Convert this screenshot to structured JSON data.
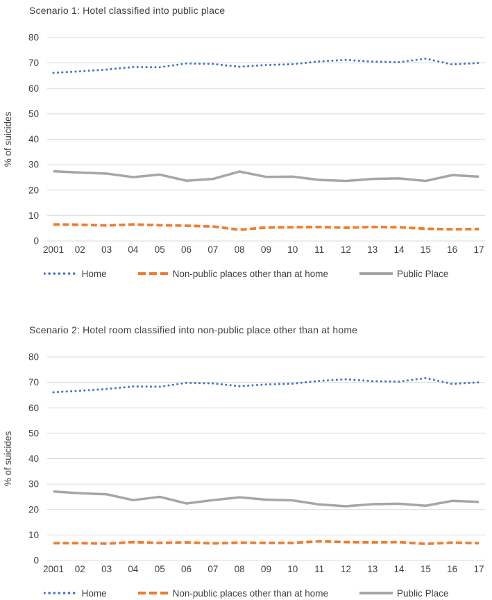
{
  "colors": {
    "home_series": "#4472C4",
    "non_public_series": "#ED7D31",
    "public_place_series": "#A6A6A6",
    "gridline": "#D9D9D9",
    "axis_text": "#3F3F3F",
    "background": "#FFFFFF"
  },
  "chart_data": [
    {
      "type": "line",
      "title": "Scenario 1: Hotel classified into public place",
      "xlabel": "",
      "ylabel": "% of suicides",
      "ylim": [
        0,
        80
      ],
      "yticks": [
        0,
        10,
        20,
        30,
        40,
        50,
        60,
        70,
        80
      ],
      "grid": true,
      "legend_position": "bottom",
      "categories": [
        "2001",
        "02",
        "03",
        "04",
        "05",
        "06",
        "07",
        "08",
        "09",
        "10",
        "11",
        "12",
        "13",
        "14",
        "15",
        "16",
        "17"
      ],
      "series": [
        {
          "name": "Home",
          "line_style": "dotted",
          "color": "#4472C4",
          "values": [
            66.1,
            66.7,
            67.4,
            68.4,
            68.3,
            69.8,
            69.6,
            68.5,
            69.2,
            69.5,
            70.6,
            71.2,
            70.5,
            70.3,
            71.7,
            69.4,
            70.0
          ]
        },
        {
          "name": "Non-public places other than at home",
          "line_style": "dashed",
          "color": "#ED7D31",
          "values": [
            6.5,
            6.4,
            6.1,
            6.5,
            6.2,
            6.0,
            5.7,
            4.4,
            5.3,
            5.4,
            5.5,
            5.2,
            5.5,
            5.4,
            4.8,
            4.6,
            4.7
          ]
        },
        {
          "name": "Public Place",
          "line_style": "solid",
          "color": "#A6A6A6",
          "values": [
            27.4,
            26.9,
            26.5,
            25.1,
            26.1,
            23.7,
            24.4,
            27.3,
            25.2,
            25.3,
            24.0,
            23.6,
            24.4,
            24.6,
            23.6,
            25.9,
            25.3
          ]
        }
      ]
    },
    {
      "type": "line",
      "title": "Scenario 2: Hotel room classified into non-public  place other than  at home",
      "xlabel": "",
      "ylabel": "% of suicides",
      "ylim": [
        0,
        80
      ],
      "yticks": [
        0,
        10,
        20,
        30,
        40,
        50,
        60,
        70,
        80
      ],
      "grid": true,
      "legend_position": "bottom",
      "categories": [
        "2001",
        "02",
        "03",
        "04",
        "05",
        "06",
        "07",
        "08",
        "09",
        "10",
        "11",
        "12",
        "13",
        "14",
        "15",
        "16",
        "17"
      ],
      "series": [
        {
          "name": "Home",
          "line_style": "dotted",
          "color": "#4472C4",
          "values": [
            66.1,
            66.7,
            67.4,
            68.4,
            68.3,
            69.8,
            69.6,
            68.5,
            69.2,
            69.5,
            70.6,
            71.2,
            70.5,
            70.3,
            71.7,
            69.4,
            70.0
          ]
        },
        {
          "name": "Non-public places other than at home",
          "line_style": "dashed",
          "color": "#ED7D31",
          "values": [
            6.8,
            6.8,
            6.6,
            7.2,
            6.9,
            7.1,
            6.7,
            7.0,
            6.9,
            6.9,
            7.5,
            7.2,
            7.1,
            7.2,
            6.5,
            7.0,
            6.8
          ]
        },
        {
          "name": "Public Place",
          "line_style": "solid",
          "color": "#A6A6A6",
          "values": [
            27.1,
            26.4,
            26.0,
            23.7,
            25.0,
            22.4,
            23.7,
            24.8,
            23.9,
            23.6,
            22.0,
            21.3,
            22.1,
            22.3,
            21.5,
            23.4,
            23.0
          ]
        }
      ]
    }
  ]
}
